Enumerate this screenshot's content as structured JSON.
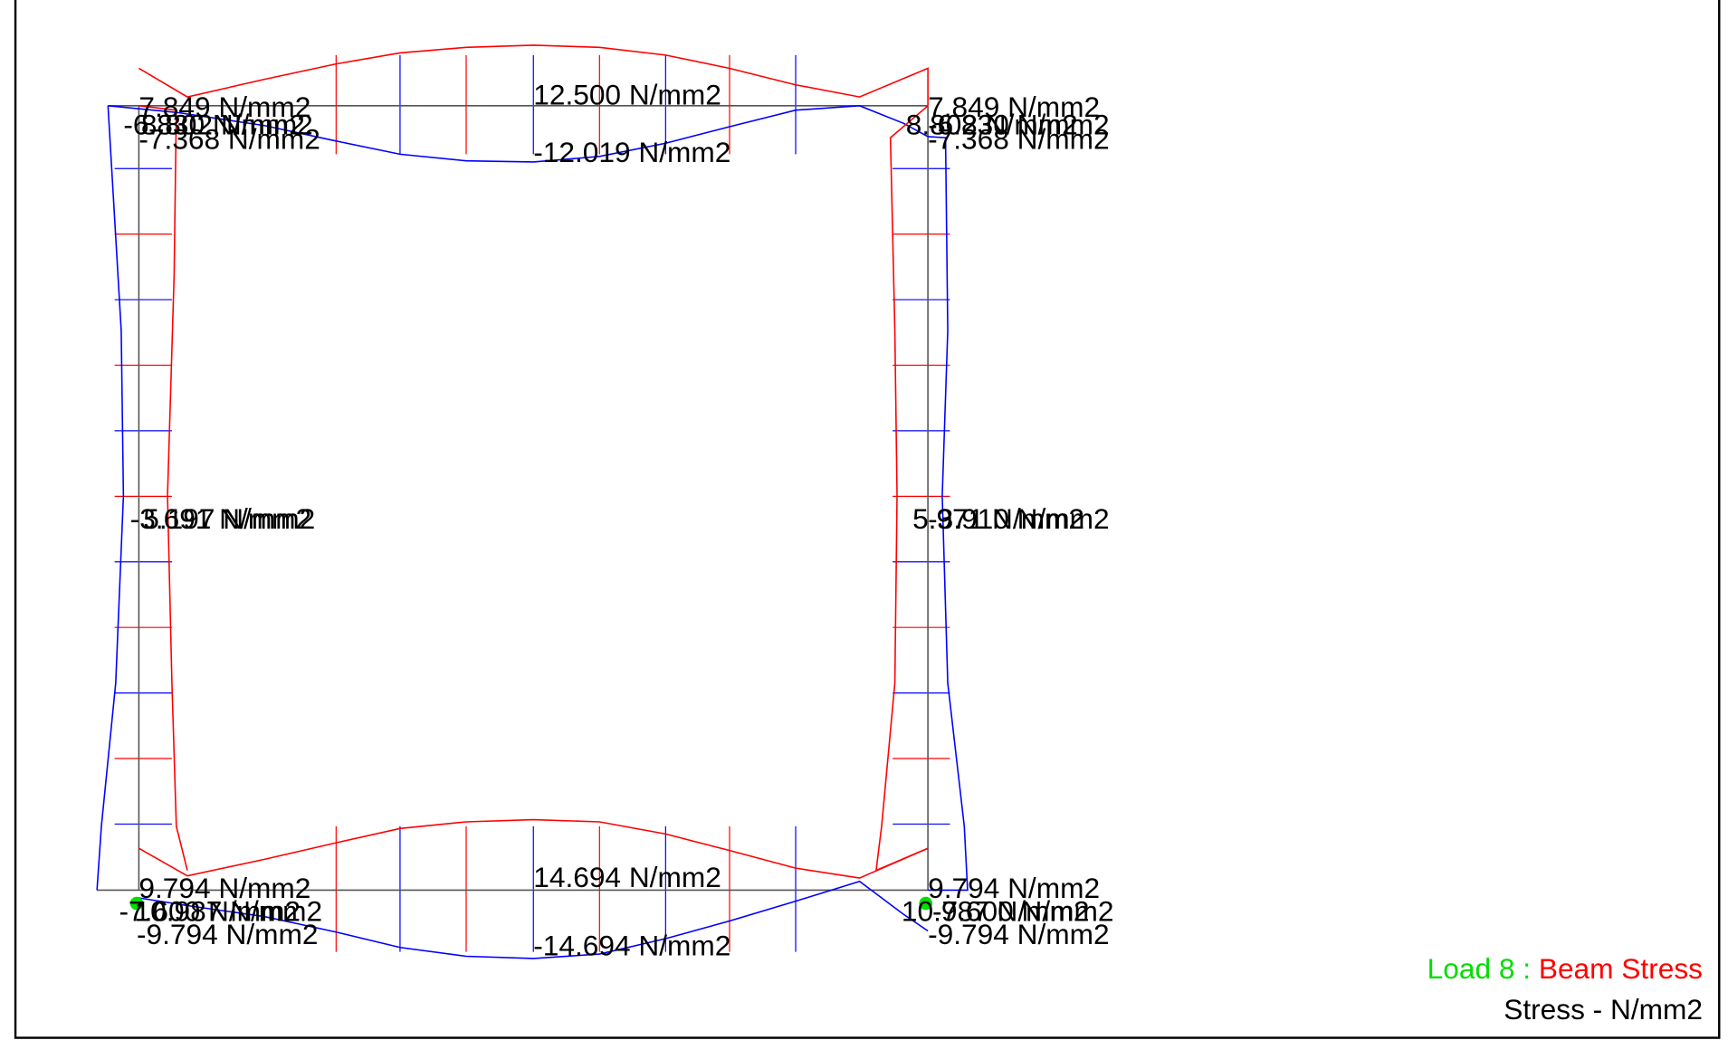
{
  "diagram": {
    "stress_labels": [
      "7.849 N/mm2",
      "-6.830 N/mm2",
      "8.802 N/mm2",
      "-7.368 N/mm2",
      "12.500 N/mm2",
      "-12.019 N/mm2",
      "7.849 N/mm2",
      "8.802 N/mm2",
      "-6.830 N/mm2",
      "-7.368 N/mm2",
      "-3.691 N/mm2",
      "5.197 N/mm2",
      "5.971 N/mm2",
      "-3.910 N/mm2",
      "9.794 N/mm2",
      "-7.600 N/mm2",
      "10.987 N/mm2",
      "-9.794 N/mm2",
      "14.694 N/mm2",
      "-14.694 N/mm2",
      "9.794 N/mm2",
      "10.987 N/mm2",
      "-7.600 N/mm2",
      "-9.794 N/mm2"
    ],
    "legend": {
      "load": "Load 8 : ",
      "result": "Beam Stress",
      "units": "Stress - N/mm2"
    }
  }
}
